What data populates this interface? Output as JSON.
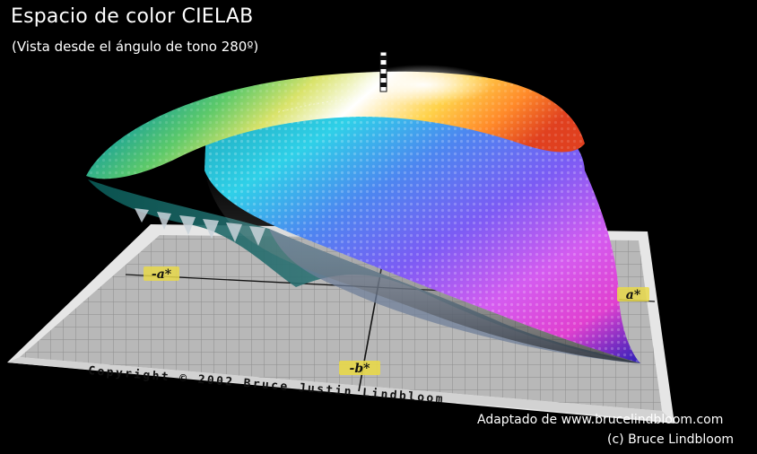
{
  "header": {
    "title": "Espacio de color CIELAB",
    "subtitle": "(Vista desde el ángulo de tono 280º)"
  },
  "plane": {
    "axis_labels": {
      "neg_a": "-a*",
      "pos_a": "a*",
      "neg_b": "-b*"
    },
    "copyright": "Copyright © 2002 Bruce Justin Lindbloom"
  },
  "footer": {
    "adapted": "Adaptado de www.brucelindbloom.com",
    "credit": "(c) Bruce Lindbloom"
  },
  "colors": {
    "background": "#000000",
    "plane": "#bdbdbd",
    "label_tag": "#e8d84a"
  }
}
